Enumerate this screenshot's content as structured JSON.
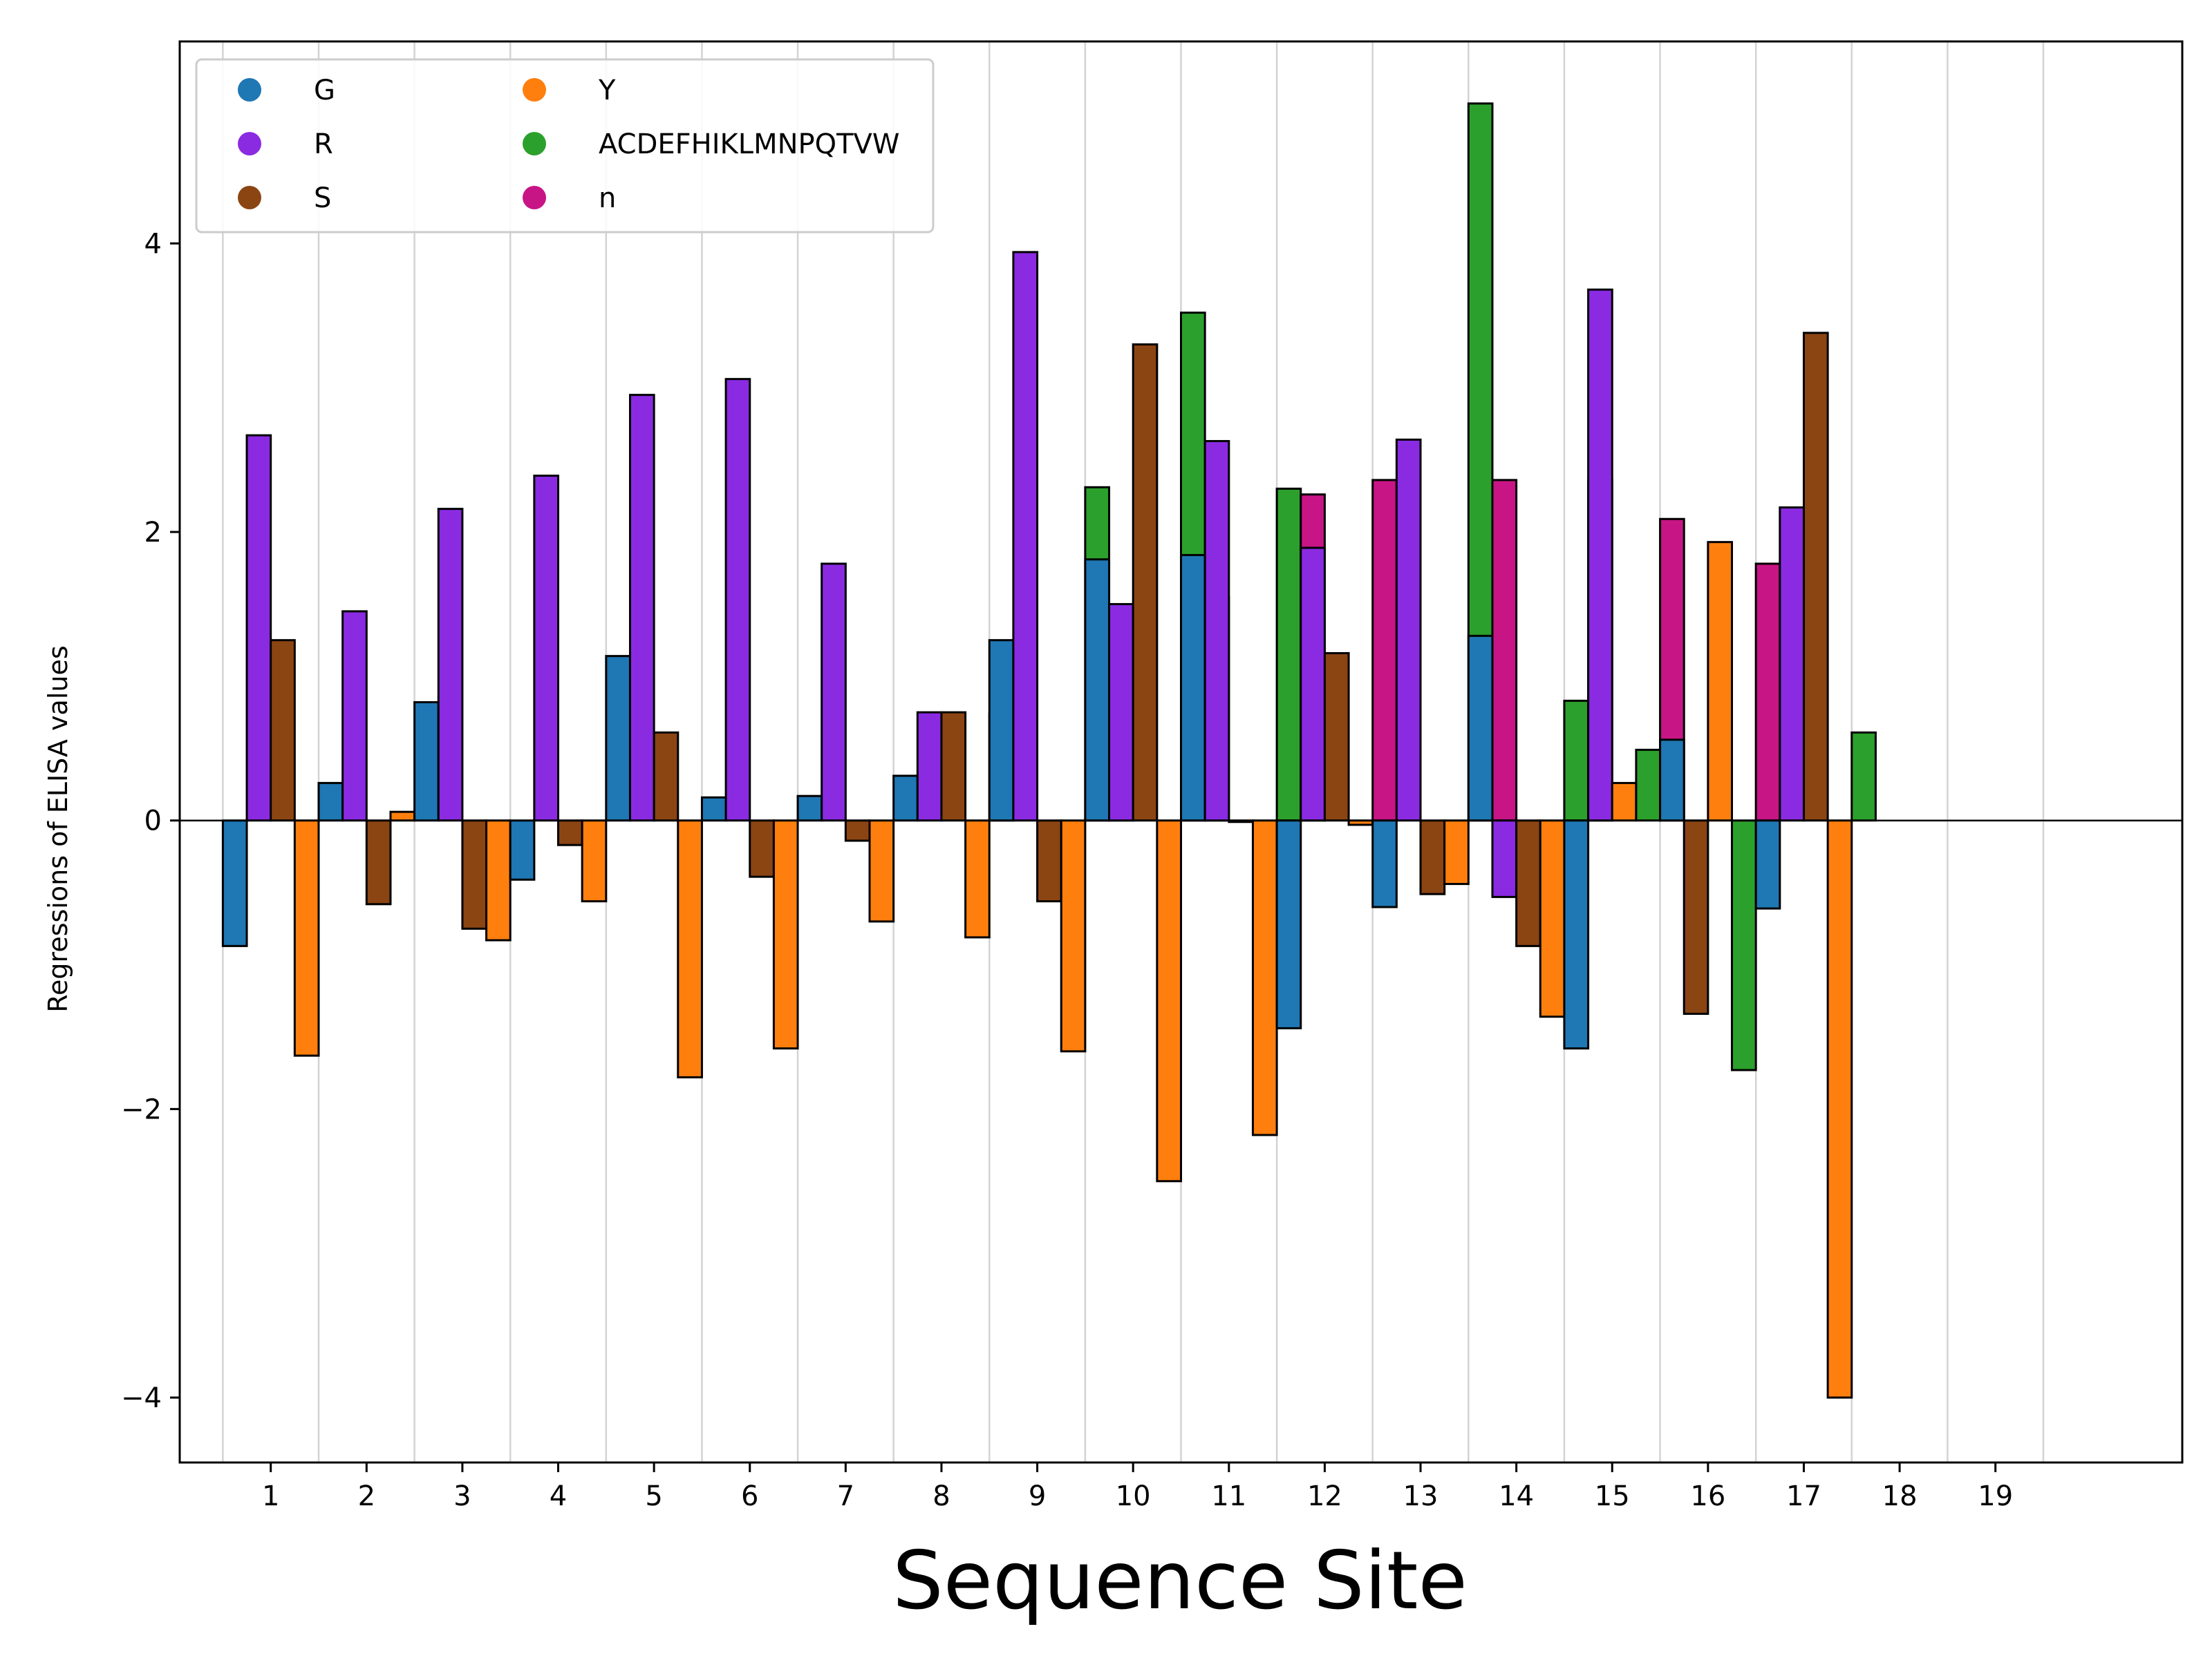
{
  "chart_data": {
    "type": "bar",
    "title": "",
    "xlabel": "Sequence Site",
    "ylabel": "Regressions of ELISA values",
    "x_ticks": [
      "1",
      "2",
      "3",
      "4",
      "5",
      "6",
      "7",
      "8",
      "9",
      "10",
      "11",
      "12",
      "13",
      "14",
      "15",
      "16",
      "17",
      "18",
      "19"
    ],
    "xlim": [
      0.05,
      20.95
    ],
    "ylim": [
      -4.45,
      5.4
    ],
    "y_ticks": [
      -4,
      -2,
      0,
      2,
      4
    ],
    "grid": "vertical lines between sites",
    "legend": {
      "placement": "top-left",
      "columns": 2
    },
    "series": [
      {
        "name": "G",
        "color": "#1f77b4"
      },
      {
        "name": "R",
        "color": "#8a2be2"
      },
      {
        "name": "S",
        "color": "#8b4513"
      },
      {
        "name": "Y",
        "color": "#ff7f0e"
      },
      {
        "name": "ACDEFHIKLMNPQTVW",
        "color": "#2ca02c"
      },
      {
        "name": "n",
        "color": "#c71585"
      }
    ],
    "bars": [
      {
        "site": 1,
        "series": "G",
        "value": -0.87
      },
      {
        "site": 1,
        "series": "R",
        "value": 2.67
      },
      {
        "site": 1,
        "series": "S",
        "value": 1.25
      },
      {
        "site": 1,
        "series": "Y",
        "value": -1.63
      },
      {
        "site": 2,
        "series": "G",
        "value": 0.26
      },
      {
        "site": 2,
        "series": "R",
        "value": 1.45
      },
      {
        "site": 2,
        "series": "S",
        "value": -0.58
      },
      {
        "site": 2,
        "series": "Y",
        "value": 0.06
      },
      {
        "site": 3,
        "series": "G",
        "value": 0.82
      },
      {
        "site": 3,
        "series": "R",
        "value": 2.16
      },
      {
        "site": 3,
        "series": "S",
        "value": -0.75
      },
      {
        "site": 3,
        "series": "Y",
        "value": -0.83
      },
      {
        "site": 4,
        "series": "G",
        "value": -0.41
      },
      {
        "site": 4,
        "series": "R",
        "value": 2.39
      },
      {
        "site": 4,
        "series": "S",
        "value": -0.17
      },
      {
        "site": 4,
        "series": "Y",
        "value": -0.56
      },
      {
        "site": 5,
        "series": "G",
        "value": 1.14
      },
      {
        "site": 5,
        "series": "R",
        "value": 2.95
      },
      {
        "site": 5,
        "series": "S",
        "value": 0.61
      },
      {
        "site": 5,
        "series": "Y",
        "value": -1.78
      },
      {
        "site": 6,
        "series": "G",
        "value": 0.16
      },
      {
        "site": 6,
        "series": "R",
        "value": 3.06
      },
      {
        "site": 6,
        "series": "S",
        "value": -0.39
      },
      {
        "site": 6,
        "series": "Y",
        "value": -1.58
      },
      {
        "site": 7,
        "series": "G",
        "value": 0.17
      },
      {
        "site": 7,
        "series": "R",
        "value": 1.78
      },
      {
        "site": 7,
        "series": "S",
        "value": -0.14
      },
      {
        "site": 7,
        "series": "Y",
        "value": -0.7
      },
      {
        "site": 8,
        "series": "G",
        "value": 0.31
      },
      {
        "site": 8,
        "series": "R",
        "value": 0.75
      },
      {
        "site": 8,
        "series": "S",
        "value": 0.75
      },
      {
        "site": 8,
        "series": "Y",
        "value": -0.81
      },
      {
        "site": 8,
        "series": "ACDEFHIKLMNPQTVW",
        "value": 0.74
      },
      {
        "site": 9,
        "series": "G",
        "value": 1.25
      },
      {
        "site": 9,
        "series": "R",
        "value": 3.94
      },
      {
        "site": 9,
        "series": "S",
        "value": -0.56
      },
      {
        "site": 9,
        "series": "Y",
        "value": -1.6
      },
      {
        "site": 9,
        "series": "ACDEFHIKLMNPQTVW",
        "value": 2.31
      },
      {
        "site": 9,
        "series": "n",
        "value": 0.74
      },
      {
        "site": 10,
        "series": "G",
        "value": 1.81
      },
      {
        "site": 10,
        "series": "R",
        "value": 1.5
      },
      {
        "site": 10,
        "series": "S",
        "value": 3.3
      },
      {
        "site": 10,
        "series": "Y",
        "value": -2.5
      },
      {
        "site": 10,
        "series": "ACDEFHIKLMNPQTVW",
        "value": 3.52
      },
      {
        "site": 10,
        "series": "n",
        "value": 1.55
      },
      {
        "site": 11,
        "series": "G",
        "value": 1.84
      },
      {
        "site": 11,
        "series": "R",
        "value": 2.63
      },
      {
        "site": 11,
        "series": "S",
        "value": -0.01
      },
      {
        "site": 11,
        "series": "Y",
        "value": -2.18
      },
      {
        "site": 11,
        "series": "ACDEFHIKLMNPQTVW",
        "value": 2.3
      },
      {
        "site": 11,
        "series": "n",
        "value": 2.26
      },
      {
        "site": 12,
        "series": "G",
        "value": -1.44
      },
      {
        "site": 12,
        "series": "R",
        "value": 1.89
      },
      {
        "site": 12,
        "series": "S",
        "value": 1.16
      },
      {
        "site": 12,
        "series": "Y",
        "value": -0.03
      },
      {
        "site": 12,
        "series": "n",
        "value": 2.36
      },
      {
        "site": 13,
        "series": "G",
        "value": -0.6
      },
      {
        "site": 13,
        "series": "R",
        "value": 2.64
      },
      {
        "site": 13,
        "series": "S",
        "value": -0.51
      },
      {
        "site": 13,
        "series": "Y",
        "value": -0.44
      },
      {
        "site": 13,
        "series": "ACDEFHIKLMNPQTVW",
        "value": 4.97
      },
      {
        "site": 13,
        "series": "n",
        "value": 2.36
      },
      {
        "site": 14,
        "series": "G",
        "value": 1.28
      },
      {
        "site": 14,
        "series": "R",
        "value": -0.53
      },
      {
        "site": 14,
        "series": "S",
        "value": -0.87
      },
      {
        "site": 14,
        "series": "Y",
        "value": -1.36
      },
      {
        "site": 14,
        "series": "ACDEFHIKLMNPQTVW",
        "value": 0.83
      },
      {
        "site": 14,
        "series": "n",
        "value": 2.36
      },
      {
        "site": 15,
        "series": "G",
        "value": -1.58
      },
      {
        "site": 15,
        "series": "R",
        "value": 3.68
      },
      {
        "site": 15,
        "series": "Y",
        "value": 0.26
      },
      {
        "site": 15,
        "series": "ACDEFHIKLMNPQTVW",
        "value": 0.49
      },
      {
        "site": 15,
        "series": "n",
        "value": 2.09
      },
      {
        "site": 16,
        "series": "G",
        "value": 0.56
      },
      {
        "site": 16,
        "series": "S",
        "value": -1.34
      },
      {
        "site": 16,
        "series": "Y",
        "value": 1.93
      },
      {
        "site": 16,
        "series": "ACDEFHIKLMNPQTVW",
        "value": -1.73
      },
      {
        "site": 16,
        "series": "n",
        "value": 1.78
      },
      {
        "site": 17,
        "series": "G",
        "value": -0.61
      },
      {
        "site": 17,
        "series": "R",
        "value": 2.17
      },
      {
        "site": 17,
        "series": "S",
        "value": 3.38
      },
      {
        "site": 17,
        "series": "Y",
        "value": -4.0
      },
      {
        "site": 17,
        "series": "ACDEFHIKLMNPQTVW",
        "value": 0.61
      }
    ]
  }
}
